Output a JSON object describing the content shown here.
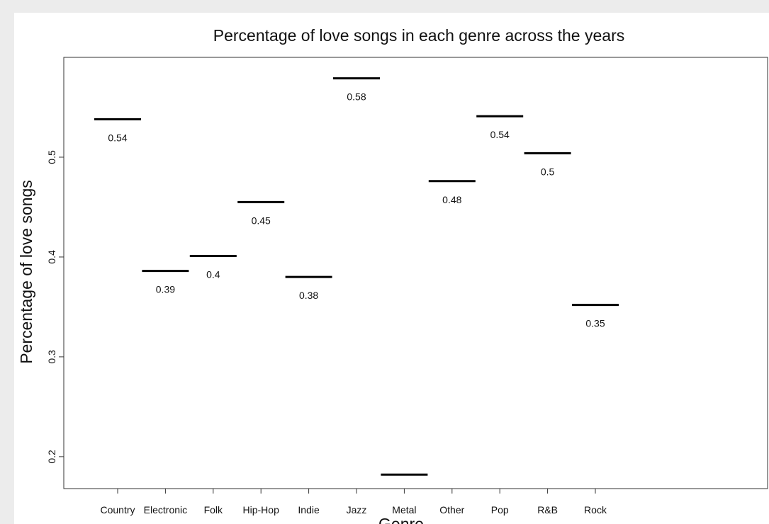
{
  "chart_data": {
    "type": "scatter",
    "title": "Percentage of love songs in each genre across the years",
    "xlabel": "Genre",
    "ylabel": "Percentage of love songs",
    "categories": [
      "Country",
      "Electronic",
      "Folk",
      "Hip-Hop",
      "Indie",
      "Jazz",
      "Metal",
      "Other",
      "Pop",
      "R&B",
      "Rock"
    ],
    "values": [
      0.538,
      0.386,
      0.401,
      0.455,
      0.38,
      0.579,
      0.182,
      0.476,
      0.541,
      0.504,
      0.352
    ],
    "data_labels": [
      "0.54",
      "0.39",
      "0.4",
      "0.45",
      "0.38",
      "0.58",
      "",
      "0.48",
      "0.54",
      "0.5",
      "0.35"
    ],
    "y_ticks": [
      0.2,
      0.3,
      0.4,
      0.5
    ],
    "y_tick_labels": [
      "0.2",
      "0.3",
      "0.4",
      "0.5"
    ],
    "ylim": [
      0.168,
      0.6
    ],
    "grid": false,
    "marker": "horizontal-segment",
    "colors": {
      "marks": "#000000",
      "axis": "#333333",
      "background": "#ffffff"
    }
  }
}
